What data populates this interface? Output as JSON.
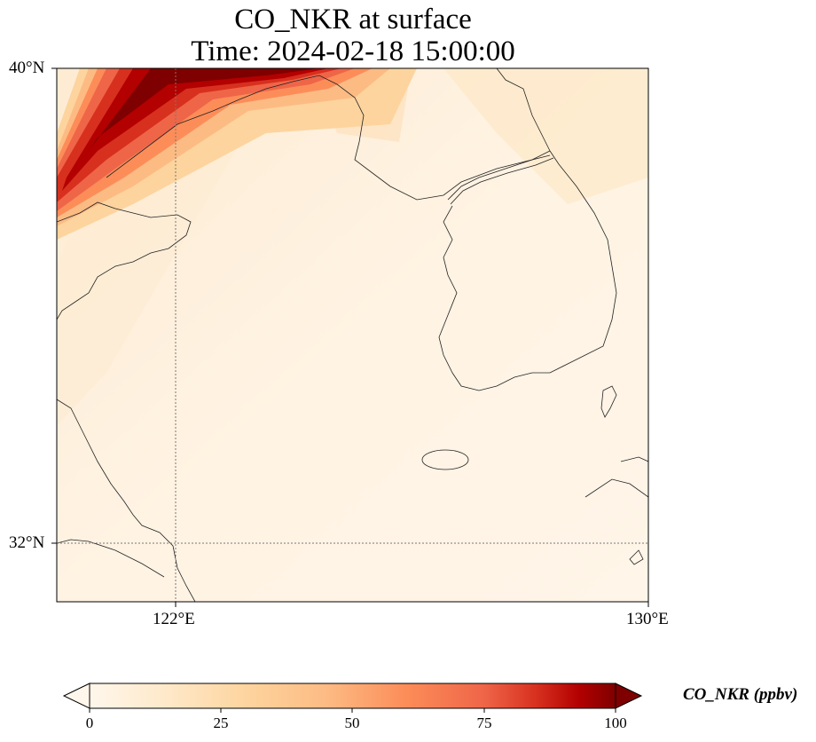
{
  "title": {
    "line1": "CO_NKR at surface",
    "line2": "Time: 2024-02-18 15:00:00"
  },
  "chart_data": {
    "type": "heatmap",
    "title": "CO_NKR at surface",
    "subtitle": "Time: 2024-02-18 15:00:00",
    "lon_range": [
      118,
      130
    ],
    "lat_range": [
      31,
      40
    ],
    "x_ticks": [
      {
        "value": 122,
        "label": "122°E"
      },
      {
        "value": 130,
        "label": "130°E"
      }
    ],
    "y_ticks": [
      {
        "value": 40,
        "label": "40°N"
      },
      {
        "value": 32,
        "label": "32°N"
      }
    ],
    "gridlines": true,
    "colormap": "OrRd",
    "colorbar": {
      "label": "CO_NKR (ppbv)",
      "min": 0,
      "max": 100,
      "extend": "both",
      "ticks": [
        "0",
        "25",
        "50",
        "75",
        "100"
      ]
    },
    "high_concentration_band": "northwest corner, near 118-122°E, 38-40°N, values up to 100 ppbv",
    "background_level_ppbv": 5
  }
}
